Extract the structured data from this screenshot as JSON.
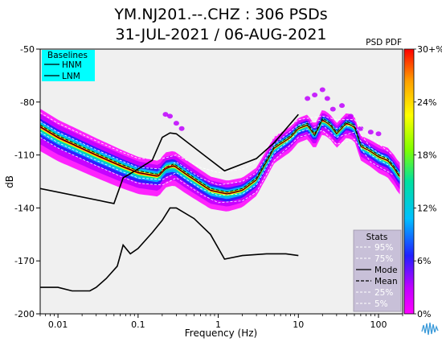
{
  "chart_data": {
    "type": "heatmap",
    "title": "YM.NJ201.--.CHZ : 306 PSDs",
    "subtitle": "31-JUL-2021 / 06-AUG-2021",
    "xlabel": "Frequency (Hz)",
    "ylabel": "dB",
    "x_scale": "log",
    "xlim": [
      0.006,
      200
    ],
    "ylim": [
      -200,
      -50
    ],
    "x_ticks": [
      0.01,
      0.1,
      1,
      10,
      100
    ],
    "x_tick_labels": [
      "0.01",
      "0.1",
      "1",
      "10",
      "100"
    ],
    "y_ticks": [
      -50,
      -80,
      -110,
      -140,
      -170,
      -200
    ],
    "y_tick_labels": [
      "-50",
      "-80",
      "-110",
      "-140",
      "-170",
      "-200"
    ],
    "colorbar": {
      "label": "PSD PDF",
      "range": [
        0,
        30
      ],
      "ticks": [
        0,
        6,
        12,
        18,
        24,
        30
      ],
      "tick_labels": [
        "0%",
        "6%",
        "12%",
        "18%",
        "24%",
        "30+%"
      ],
      "colors": [
        "#ff00ff",
        "#c000ff",
        "#2020ff",
        "#00c0ff",
        "#00e0a0",
        "#80ff00",
        "#ffff00",
        "#ffa000",
        "#ff0000"
      ]
    },
    "baselines_legend": {
      "title": "Baselines",
      "entries": [
        "HNM",
        "LNM"
      ],
      "background": "#00ffff"
    },
    "stats_legend": {
      "title": "Stats",
      "entries": [
        "95%",
        "75%",
        "Mode",
        "Mean",
        "25%",
        "5%"
      ]
    },
    "series": [
      {
        "name": "HNM",
        "points": [
          [
            0.006,
            -129
          ],
          [
            0.05,
            -137.5
          ],
          [
            0.065,
            -123
          ],
          [
            0.1,
            -118
          ],
          [
            0.15,
            -113
          ],
          [
            0.2,
            -100
          ],
          [
            0.25,
            -97.5
          ],
          [
            0.3,
            -98
          ],
          [
            1.2,
            -119
          ],
          [
            3,
            -112
          ],
          [
            5,
            -103
          ],
          [
            10,
            -87
          ]
        ]
      },
      {
        "name": "LNM",
        "points": [
          [
            0.006,
            -185
          ],
          [
            0.01,
            -185
          ],
          [
            0.015,
            -187
          ],
          [
            0.025,
            -187
          ],
          [
            0.03,
            -185
          ],
          [
            0.04,
            -180
          ],
          [
            0.055,
            -173
          ],
          [
            0.065,
            -161
          ],
          [
            0.08,
            -166
          ],
          [
            0.1,
            -163
          ],
          [
            0.15,
            -154
          ],
          [
            0.2,
            -147
          ],
          [
            0.25,
            -140
          ],
          [
            0.3,
            -140
          ],
          [
            0.5,
            -146
          ],
          [
            0.8,
            -155
          ],
          [
            1.2,
            -169
          ],
          [
            2,
            -167
          ],
          [
            4,
            -166
          ],
          [
            7,
            -166
          ],
          [
            10,
            -167
          ]
        ]
      },
      {
        "name": "Mode",
        "points": [
          [
            0.006,
            -94
          ],
          [
            0.01,
            -100
          ],
          [
            0.03,
            -110
          ],
          [
            0.06,
            -116
          ],
          [
            0.1,
            -120
          ],
          [
            0.18,
            -122
          ],
          [
            0.22,
            -118
          ],
          [
            0.28,
            -116
          ],
          [
            0.4,
            -121
          ],
          [
            0.8,
            -130
          ],
          [
            1.3,
            -132
          ],
          [
            2,
            -130
          ],
          [
            3,
            -124
          ],
          [
            5,
            -106
          ],
          [
            8,
            -100
          ],
          [
            10,
            -95
          ],
          [
            13,
            -93
          ],
          [
            16,
            -99
          ],
          [
            20,
            -90
          ],
          [
            25,
            -93
          ],
          [
            30,
            -98
          ],
          [
            40,
            -92
          ],
          [
            50,
            -94
          ],
          [
            60,
            -105
          ],
          [
            80,
            -108
          ],
          [
            100,
            -111
          ],
          [
            130,
            -113
          ],
          [
            160,
            -118
          ],
          [
            180,
            -122
          ]
        ]
      },
      {
        "name": "Mean",
        "points": [
          [
            0.006,
            -93
          ],
          [
            0.01,
            -99
          ],
          [
            0.03,
            -109
          ],
          [
            0.06,
            -115
          ],
          [
            0.1,
            -119
          ],
          [
            0.18,
            -121
          ],
          [
            0.22,
            -117
          ],
          [
            0.28,
            -115
          ],
          [
            0.4,
            -120
          ],
          [
            0.8,
            -129
          ],
          [
            1.3,
            -131
          ],
          [
            2,
            -129
          ],
          [
            3,
            -123
          ],
          [
            5,
            -105
          ],
          [
            8,
            -99
          ],
          [
            10,
            -94
          ],
          [
            13,
            -92
          ],
          [
            16,
            -98
          ],
          [
            20,
            -89
          ],
          [
            25,
            -92
          ],
          [
            30,
            -97
          ],
          [
            40,
            -91
          ],
          [
            50,
            -93
          ],
          [
            60,
            -104
          ],
          [
            80,
            -107
          ],
          [
            100,
            -110
          ],
          [
            130,
            -112
          ],
          [
            160,
            -117
          ],
          [
            180,
            -121
          ]
        ]
      },
      {
        "name": "95%",
        "points": [
          [
            0.006,
            -86
          ],
          [
            0.01,
            -92
          ],
          [
            0.03,
            -102
          ],
          [
            0.06,
            -108
          ],
          [
            0.1,
            -112
          ],
          [
            0.2,
            -112
          ],
          [
            0.3,
            -110
          ],
          [
            0.6,
            -117
          ],
          [
            1,
            -120
          ],
          [
            2,
            -118
          ],
          [
            3,
            -114
          ],
          [
            5,
            -100
          ],
          [
            10,
            -90
          ],
          [
            20,
            -88
          ],
          [
            30,
            -90
          ],
          [
            50,
            -90
          ],
          [
            80,
            -100
          ],
          [
            150,
            -110
          ]
        ]
      },
      {
        "name": "75%",
        "points": [
          [
            0.006,
            -91
          ],
          [
            0.01,
            -97
          ],
          [
            0.03,
            -107
          ],
          [
            0.06,
            -113
          ],
          [
            0.1,
            -117
          ],
          [
            0.2,
            -118
          ],
          [
            0.3,
            -114
          ],
          [
            0.6,
            -123
          ],
          [
            1,
            -127
          ],
          [
            2,
            -125
          ],
          [
            3,
            -120
          ],
          [
            5,
            -104
          ],
          [
            10,
            -93
          ],
          [
            20,
            -90
          ],
          [
            30,
            -95
          ],
          [
            50,
            -93
          ],
          [
            80,
            -106
          ],
          [
            150,
            -114
          ]
        ]
      },
      {
        "name": "25%",
        "points": [
          [
            0.006,
            -97
          ],
          [
            0.01,
            -103
          ],
          [
            0.03,
            -113
          ],
          [
            0.06,
            -119
          ],
          [
            0.1,
            -123
          ],
          [
            0.2,
            -124
          ],
          [
            0.3,
            -120
          ],
          [
            0.6,
            -129
          ],
          [
            1,
            -133
          ],
          [
            2,
            -132
          ],
          [
            3,
            -127
          ],
          [
            5,
            -109
          ],
          [
            10,
            -97
          ],
          [
            20,
            -93
          ],
          [
            30,
            -100
          ],
          [
            50,
            -97
          ],
          [
            80,
            -110
          ],
          [
            150,
            -117
          ]
        ]
      },
      {
        "name": "5%",
        "points": [
          [
            0.006,
            -100
          ],
          [
            0.01,
            -106
          ],
          [
            0.03,
            -116
          ],
          [
            0.06,
            -122
          ],
          [
            0.1,
            -126
          ],
          [
            0.2,
            -127
          ],
          [
            0.3,
            -123
          ],
          [
            0.6,
            -132
          ],
          [
            1,
            -137
          ],
          [
            2,
            -136
          ],
          [
            3,
            -131
          ],
          [
            5,
            -113
          ],
          [
            10,
            -100
          ],
          [
            20,
            -96
          ],
          [
            30,
            -104
          ],
          [
            50,
            -101
          ],
          [
            80,
            -114
          ],
          [
            150,
            -121
          ]
        ]
      }
    ],
    "density_band": {
      "center": [
        [
          0.006,
          -94
        ],
        [
          0.01,
          -100
        ],
        [
          0.03,
          -110
        ],
        [
          0.06,
          -116
        ],
        [
          0.1,
          -120
        ],
        [
          0.18,
          -122
        ],
        [
          0.22,
          -117
        ],
        [
          0.28,
          -116
        ],
        [
          0.4,
          -121
        ],
        [
          0.8,
          -130
        ],
        [
          1.3,
          -132
        ],
        [
          2,
          -130
        ],
        [
          3,
          -124
        ],
        [
          5,
          -106
        ],
        [
          8,
          -100
        ],
        [
          10,
          -95
        ],
        [
          13,
          -93
        ],
        [
          16,
          -99
        ],
        [
          20,
          -90
        ],
        [
          25,
          -93
        ],
        [
          30,
          -98
        ],
        [
          40,
          -92
        ],
        [
          50,
          -94
        ],
        [
          60,
          -105
        ],
        [
          80,
          -108
        ],
        [
          100,
          -111
        ],
        [
          130,
          -113
        ],
        [
          160,
          -118
        ],
        [
          180,
          -122
        ]
      ],
      "spread_db": [
        [
          0.006,
          12
        ],
        [
          0.05,
          11
        ],
        [
          0.2,
          10
        ],
        [
          1,
          9
        ],
        [
          3,
          8
        ],
        [
          10,
          7
        ],
        [
          30,
          7
        ],
        [
          60,
          7
        ],
        [
          100,
          8
        ],
        [
          180,
          9
        ]
      ],
      "outliers": [
        [
          13,
          -78
        ],
        [
          16,
          -76
        ],
        [
          20,
          -73
        ],
        [
          23,
          -78
        ],
        [
          27,
          -84
        ],
        [
          35,
          -82
        ],
        [
          45,
          -88
        ],
        [
          0.22,
          -87
        ],
        [
          0.25,
          -88
        ],
        [
          0.3,
          -92
        ],
        [
          0.35,
          -95
        ],
        [
          60,
          -95
        ],
        [
          80,
          -97
        ],
        [
          100,
          -98
        ]
      ]
    }
  }
}
